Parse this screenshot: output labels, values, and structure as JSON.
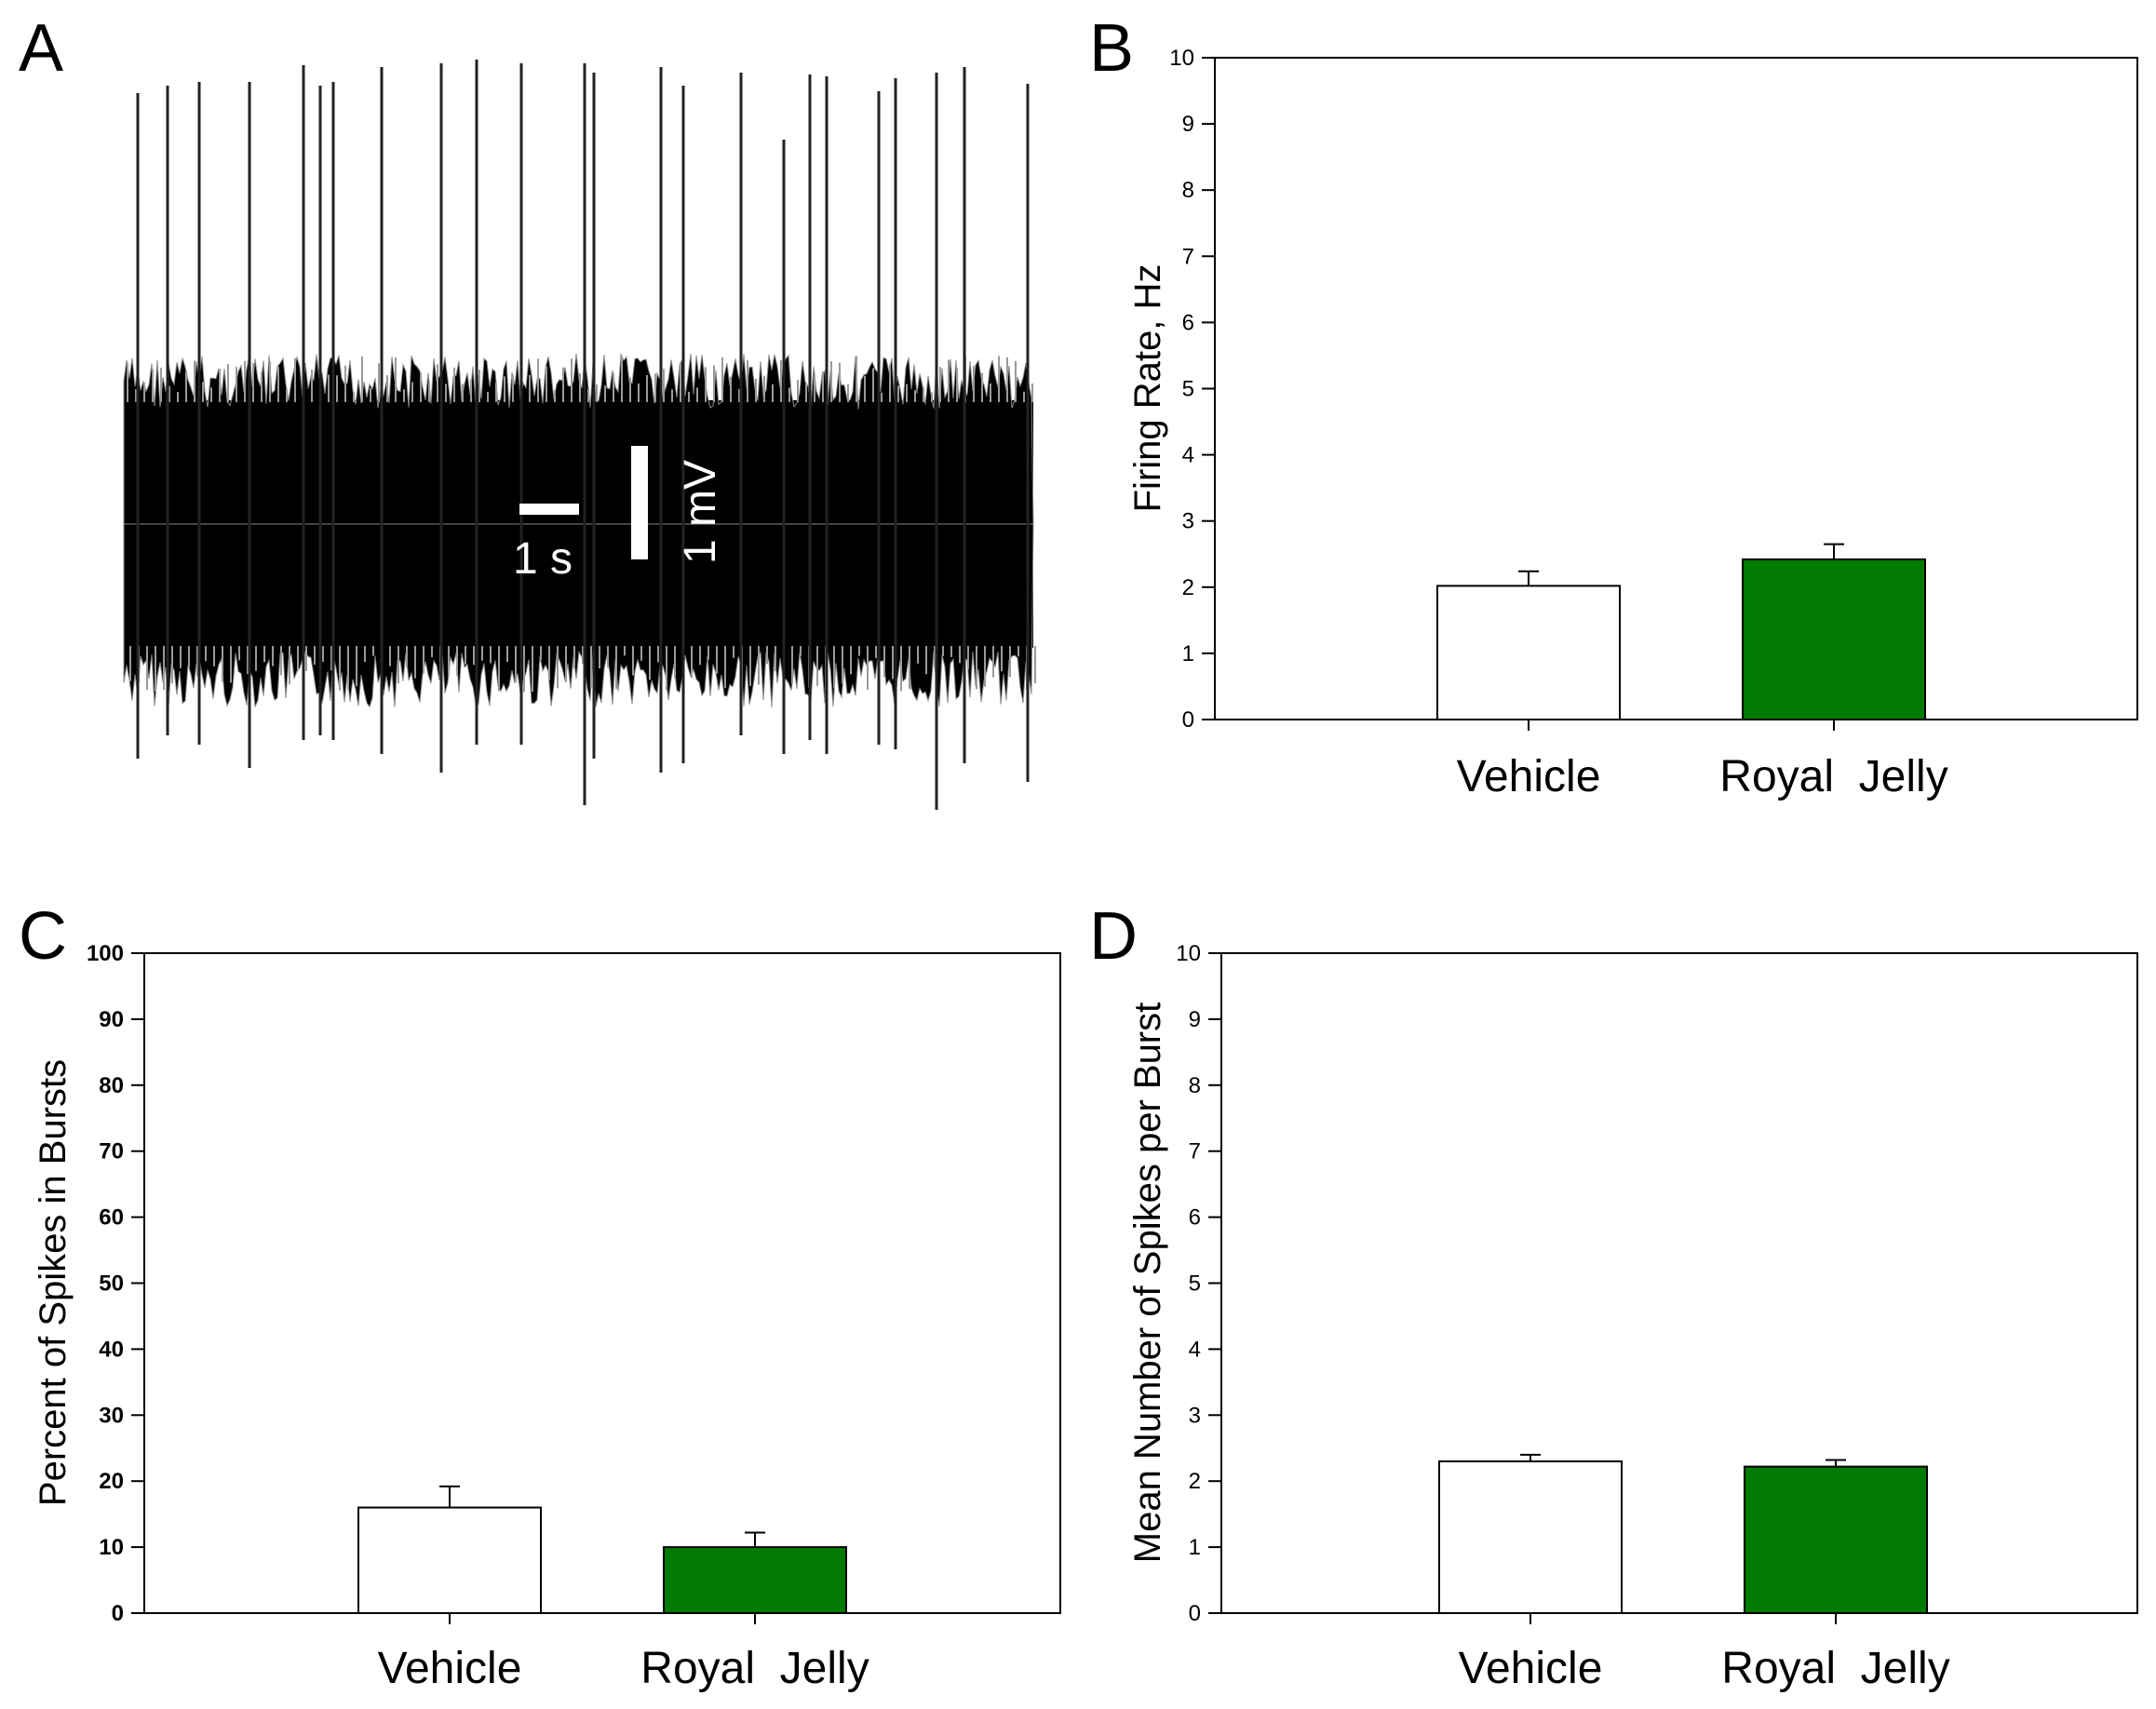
{
  "panels": {
    "A": {
      "label": "A",
      "time_scale_label": "1 s",
      "voltage_scale_label": "1 mV"
    },
    "B": {
      "label": "B"
    },
    "C": {
      "label": "C"
    },
    "D": {
      "label": "D"
    }
  },
  "colors": {
    "vehicle_fill": "#ffffff",
    "royal_jelly_fill": "#007a00",
    "axis": "#000000",
    "trace": "#000000"
  },
  "chart_data": [
    {
      "panel": "B",
      "type": "bar",
      "categories": [
        "Vehicle",
        "Royal  Jelly"
      ],
      "values": [
        2.02,
        2.42
      ],
      "errors": [
        0.22,
        0.23
      ],
      "ylabel": "Firing Rate, Hz",
      "ylim": [
        0,
        10
      ],
      "yticks": [
        0,
        1,
        2,
        3,
        4,
        5,
        6,
        7,
        8,
        9,
        10
      ],
      "bold_ticks": false,
      "grid": false
    },
    {
      "panel": "C",
      "type": "bar",
      "categories": [
        "Vehicle",
        "Royal  Jelly"
      ],
      "values": [
        16,
        10
      ],
      "errors": [
        3.2,
        2.2
      ],
      "ylabel": "Percent of Spikes in Bursts",
      "ylim": [
        0,
        100
      ],
      "yticks": [
        0,
        10,
        20,
        30,
        40,
        50,
        60,
        70,
        80,
        90,
        100
      ],
      "bold_ticks": true,
      "grid": false
    },
    {
      "panel": "D",
      "type": "bar",
      "categories": [
        "Vehicle",
        "Royal  Jelly"
      ],
      "values": [
        2.3,
        2.22
      ],
      "errors": [
        0.1,
        0.1
      ],
      "ylabel": "Mean Number of Spikes per Burst",
      "ylim": [
        0,
        10
      ],
      "yticks": [
        0,
        1,
        2,
        3,
        4,
        5,
        6,
        7,
        8,
        9,
        10
      ],
      "bold_ticks": false,
      "grid": false
    }
  ]
}
